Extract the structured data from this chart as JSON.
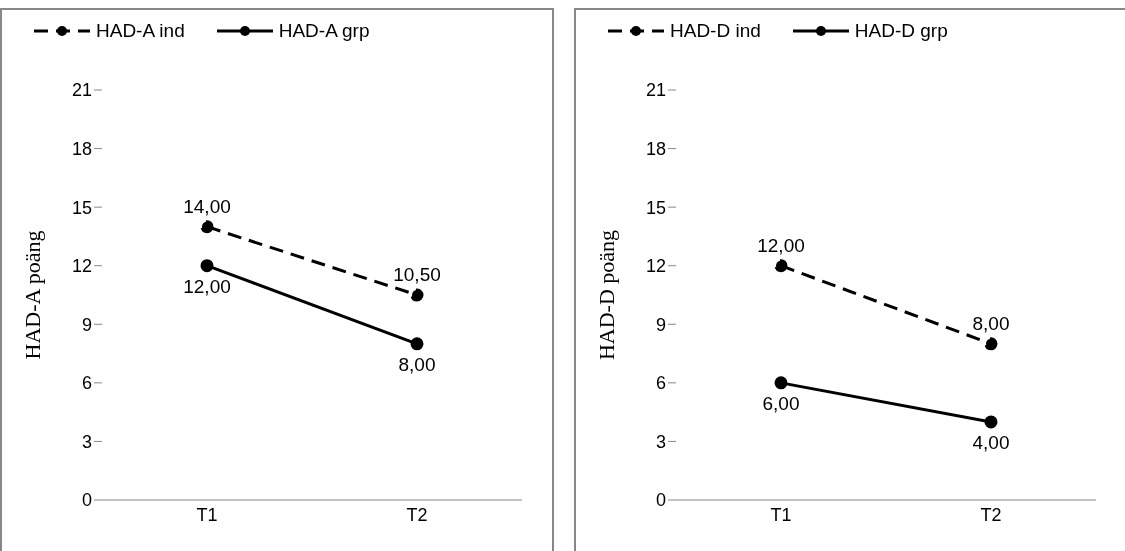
{
  "chart_data": [
    {
      "type": "line",
      "categories": [
        "T1",
        "T2"
      ],
      "ylabel": "HAD-A poäng",
      "ylim": [
        0,
        21
      ],
      "yticks": [
        0,
        3,
        6,
        9,
        12,
        15,
        18,
        21
      ],
      "grid": false,
      "legend": "top left",
      "marker": "circle",
      "series": [
        {
          "name": "HAD-A ind",
          "color": "#000000",
          "line_style": "dashed",
          "values": [
            14,
            10.5
          ],
          "value_labels": [
            "14,00",
            "10,50"
          ]
        },
        {
          "name": "HAD-A grp",
          "color": "#000000",
          "line_style": "solid",
          "values": [
            12,
            8
          ],
          "value_labels": [
            "12,00",
            "8,00"
          ]
        }
      ]
    },
    {
      "type": "line",
      "categories": [
        "T1",
        "T2"
      ],
      "ylabel": "HAD-D poäng",
      "ylim": [
        0,
        21
      ],
      "yticks": [
        0,
        3,
        6,
        9,
        12,
        15,
        18,
        21
      ],
      "grid": false,
      "legend": "top left",
      "marker": "circle",
      "series": [
        {
          "name": "HAD-D ind",
          "color": "#000000",
          "line_style": "dashed",
          "values": [
            12,
            8
          ],
          "value_labels": [
            "12,00",
            "8,00"
          ]
        },
        {
          "name": "HAD-D grp",
          "color": "#000000",
          "line_style": "solid",
          "values": [
            6,
            4
          ],
          "value_labels": [
            "6,00",
            "4,00"
          ]
        }
      ]
    }
  ]
}
